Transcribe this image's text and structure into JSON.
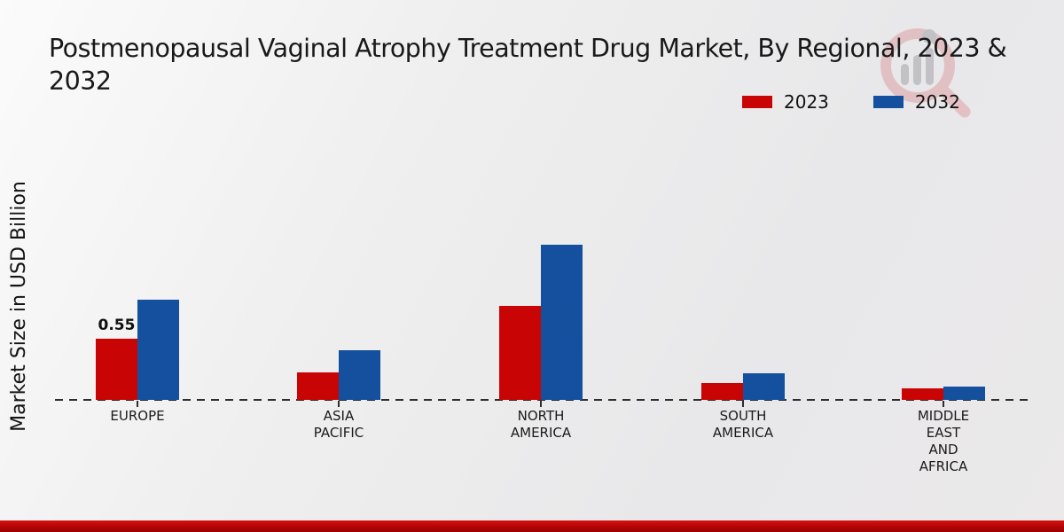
{
  "title": "Postmenopausal Vaginal Atrophy Treatment Drug Market, By Regional, 2023 & 2032",
  "y_axis_label": "Market Size in USD Billion",
  "legend": {
    "position": "top-right",
    "items": [
      {
        "label": "2023",
        "color": "#c90404"
      },
      {
        "label": "2032",
        "color": "#14509e"
      }
    ]
  },
  "watermark_icon": "magnifier-bar-chart-logo",
  "colors": {
    "series_2023": "#c90404",
    "series_2032": "#14509e",
    "footer_accent": "#b30505",
    "axis": "#2e2e2e",
    "background": "#ebebeb"
  },
  "chart_data": {
    "type": "bar",
    "title": "Postmenopausal Vaginal Atrophy Treatment Drug Market, By Regional, 2023 & 2032",
    "xlabel": "",
    "ylabel": "Market Size in USD Billion",
    "categories": [
      "EUROPE",
      "ASIA PACIFIC",
      "NORTH AMERICA",
      "SOUTH AMERICA",
      "MIDDLE EAST AND AFRICA"
    ],
    "tick_label_lines": [
      [
        "EUROPE"
      ],
      [
        "ASIA",
        "PACIFIC"
      ],
      [
        "NORTH",
        "AMERICA"
      ],
      [
        "SOUTH",
        "AMERICA"
      ],
      [
        "MIDDLE",
        "EAST",
        "AND",
        "AFRICA"
      ]
    ],
    "series": [
      {
        "name": "2023",
        "color": "#c90404",
        "values": [
          0.55,
          0.25,
          0.85,
          0.15,
          0.1
        ]
      },
      {
        "name": "2032",
        "color": "#14509e",
        "values": [
          0.9,
          0.45,
          1.4,
          0.24,
          0.12
        ]
      }
    ],
    "annotations": [
      {
        "series_index": 0,
        "category_index": 0,
        "text": "0.55"
      }
    ],
    "ylim": [
      0,
      1.55
    ],
    "grid": false,
    "baseline_style": "dashed",
    "legend_position": "top-right"
  }
}
